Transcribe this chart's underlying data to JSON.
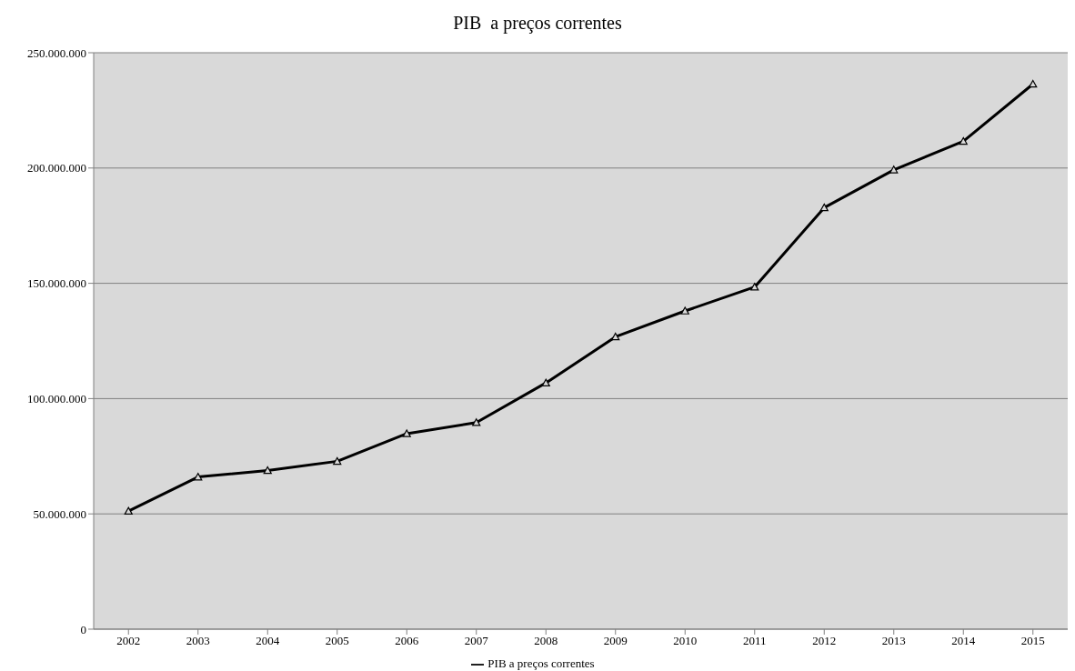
{
  "chart_data": {
    "type": "line",
    "title": "PIB  a preços correntes",
    "categories": [
      "2002",
      "2003",
      "2004",
      "2005",
      "2006",
      "2007",
      "2008",
      "2009",
      "2010",
      "2011",
      "2012",
      "2013",
      "2014",
      "2015"
    ],
    "series": [
      {
        "name": "PIB  a preços correntes",
        "color": "#000000",
        "values": [
          51200000,
          66000000,
          68800000,
          72800000,
          84800000,
          89600000,
          106800000,
          126800000,
          138000000,
          148400000,
          182800000,
          199200000,
          211600000,
          236400000
        ]
      }
    ],
    "ylim": [
      0,
      250000000
    ],
    "yticks": [
      {
        "value": 0,
        "label": "0"
      },
      {
        "value": 50000000,
        "label": "50.000.000"
      },
      {
        "value": 100000000,
        "label": "100.000.000"
      },
      {
        "value": 150000000,
        "label": "150.000.000"
      },
      {
        "value": 200000000,
        "label": "200.000.000"
      },
      {
        "value": 250000000,
        "label": "250.000.000"
      }
    ],
    "grid": "y",
    "legend": "bottom",
    "marker": "triangle",
    "line_style": "solid"
  }
}
